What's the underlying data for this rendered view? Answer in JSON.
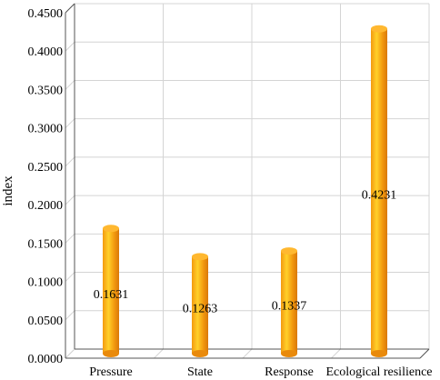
{
  "chart_data": {
    "type": "bar",
    "categories": [
      "Pressure",
      "State",
      "Response",
      "Ecological resilience"
    ],
    "values": [
      0.1631,
      0.1263,
      0.1337,
      0.4231
    ],
    "data_labels": [
      "0.1631",
      "0.1263",
      "0.1337",
      "0.4231"
    ],
    "title": "",
    "xlabel": "",
    "ylabel": "index",
    "ylim": [
      0,
      0.45
    ],
    "yticks": [
      "0.0000",
      "0.0500",
      "0.1000",
      "0.1500",
      "0.2000",
      "0.2500",
      "0.3000",
      "0.3500",
      "0.4000",
      "0.4500"
    ],
    "grid": true,
    "legend": "none",
    "bar_color": "#f39a0f",
    "bar_highlight": "#ffd02a",
    "bar_top_color": "#ffb830"
  }
}
